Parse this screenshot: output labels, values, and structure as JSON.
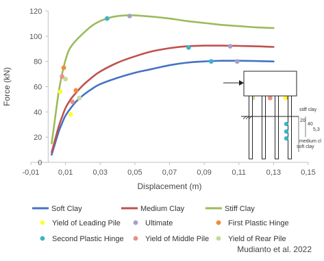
{
  "chart_data": {
    "type": "line",
    "xlabel": "Displacement (m)",
    "ylabel": "Force (kN)",
    "xlim": [
      -0.01,
      0.15
    ],
    "ylim": [
      0,
      120
    ],
    "xticks": [
      -0.01,
      0.01,
      0.03,
      0.05,
      0.07,
      0.09,
      0.11,
      0.13,
      0.15
    ],
    "xtick_labels": [
      "-0,01",
      "0,01",
      "0,03",
      "0,05",
      "0,07",
      "0,09",
      "0,11",
      "0,13",
      "0,15"
    ],
    "yticks": [
      0,
      20,
      40,
      60,
      80,
      100,
      120
    ],
    "ytick_labels": [
      "0",
      "20",
      "40",
      "60",
      "80",
      "100",
      "120"
    ],
    "grid": false,
    "legend_position": "bottom",
    "series": [
      {
        "name": "Soft Clay",
        "color": "#4472C4",
        "x": [
          0.002,
          0.004,
          0.006,
          0.008,
          0.01,
          0.013,
          0.016,
          0.02,
          0.025,
          0.03,
          0.04,
          0.05,
          0.06,
          0.07,
          0.08,
          0.09,
          0.1,
          0.11,
          0.12,
          0.13
        ],
        "y": [
          6,
          15,
          24,
          31,
          37,
          43,
          48,
          53,
          58,
          62,
          67,
          71,
          74,
          77,
          79,
          80,
          80.5,
          80.5,
          80.3,
          80
        ]
      },
      {
        "name": "Medium Clay",
        "color": "#C0504D",
        "x": [
          0.002,
          0.004,
          0.006,
          0.008,
          0.01,
          0.013,
          0.016,
          0.02,
          0.025,
          0.03,
          0.04,
          0.05,
          0.06,
          0.07,
          0.08,
          0.09,
          0.1,
          0.11,
          0.12,
          0.13
        ],
        "y": [
          8,
          18,
          28,
          36,
          43,
          50,
          55,
          61,
          67,
          72,
          79,
          84,
          88,
          90.5,
          92,
          92.5,
          92.5,
          92.3,
          92,
          91.5
        ]
      },
      {
        "name": "Stiff Clay",
        "color": "#9BBB59",
        "x": [
          0.002,
          0.004,
          0.006,
          0.008,
          0.01,
          0.012,
          0.015,
          0.02,
          0.025,
          0.03,
          0.035,
          0.04,
          0.045,
          0.05,
          0.06,
          0.07,
          0.08,
          0.09,
          0.1,
          0.11,
          0.12,
          0.13
        ],
        "y": [
          15,
          35,
          55,
          70,
          81,
          89,
          95,
          102,
          108,
          112,
          114.5,
          116,
          116.5,
          116.5,
          115.5,
          114,
          112,
          110.5,
          109,
          108,
          107,
          106.5
        ]
      }
    ],
    "markers": [
      {
        "name": "Yield of Leading Pile",
        "color": "#FFFF33",
        "points": [
          [
            0.007,
            56
          ],
          [
            0.013,
            38
          ],
          [
            0.137,
            51
          ]
        ]
      },
      {
        "name": "Ultimate",
        "color": "#A79FC4",
        "points": [
          [
            0.047,
            116
          ],
          [
            0.105,
            92
          ],
          [
            0.109,
            80
          ]
        ]
      },
      {
        "name": "First Plastic Hinge",
        "color": "#F08A3C",
        "points": [
          [
            0.009,
            75
          ],
          [
            0.016,
            57
          ],
          [
            0.139,
            51
          ]
        ]
      },
      {
        "name": "Second Plastic Hinge",
        "color": "#3FB3C8",
        "points": [
          [
            0.034,
            114
          ],
          [
            0.081,
            91
          ],
          [
            0.094,
            80
          ]
        ]
      },
      {
        "name": "Yield of Middle Pile",
        "color": "#E8908A",
        "points": [
          [
            0.008,
            68
          ],
          [
            0.014,
            48
          ],
          [
            0.128,
            51
          ]
        ]
      },
      {
        "name": "Yield of Rear Pile",
        "color": "#C9D89B",
        "points": [
          [
            0.01,
            66
          ],
          [
            0.018,
            51
          ],
          [
            0.118,
            51
          ]
        ]
      }
    ],
    "inset": {
      "labels": [
        "stiff clay",
        "20",
        "40",
        "5,3",
        "medium cl",
        "soft clay"
      ]
    }
  },
  "source": "Mudianto et al. 2022"
}
